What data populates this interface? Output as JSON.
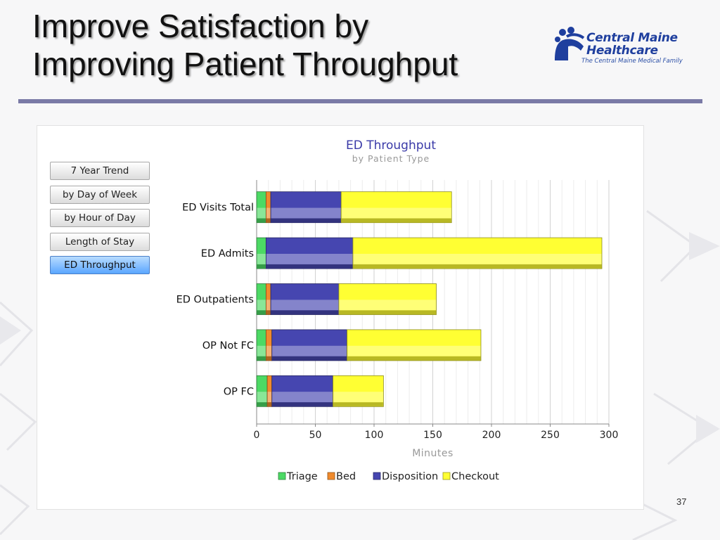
{
  "slide": {
    "title_line1": "Improve Satisfaction by",
    "title_line2": "Improving Patient Throughput",
    "page_number": "37"
  },
  "logo": {
    "line1": "Central Maine",
    "line2": "Healthcare",
    "tagline": "The Central Maine Medical Family"
  },
  "nav": {
    "buttons": [
      {
        "label": "7 Year Trend",
        "active": false
      },
      {
        "label": "by Day of Week",
        "active": false
      },
      {
        "label": "by Hour of Day",
        "active": false
      },
      {
        "label": "Length of Stay",
        "active": false
      },
      {
        "label": "ED Throughput",
        "active": true
      }
    ]
  },
  "chart_data": {
    "type": "bar",
    "orientation": "horizontal",
    "stacked": true,
    "title": "ED Throughput",
    "subtitle": "by Patient Type",
    "xlabel": "Minutes",
    "ylabel": "",
    "xlim": [
      0,
      300
    ],
    "xticks": [
      0,
      50,
      100,
      150,
      200,
      250,
      300
    ],
    "grid": true,
    "legend_position": "bottom",
    "categories": [
      "ED Visits Total",
      "ED Admits",
      "ED Outpatients",
      "OP Not FC",
      "OP FC"
    ],
    "series": [
      {
        "name": "Triage",
        "color": "#4cd964",
        "values": [
          8,
          8,
          8,
          8,
          9
        ]
      },
      {
        "name": "Bed",
        "color": "#f08a2c",
        "values": [
          4,
          0,
          4,
          5,
          4
        ]
      },
      {
        "name": "Disposition",
        "color": "#4646b0",
        "values": [
          60,
          74,
          58,
          64,
          52
        ]
      },
      {
        "name": "Checkout",
        "color": "#ffff33",
        "values": [
          94,
          212,
          83,
          114,
          43
        ]
      }
    ]
  }
}
